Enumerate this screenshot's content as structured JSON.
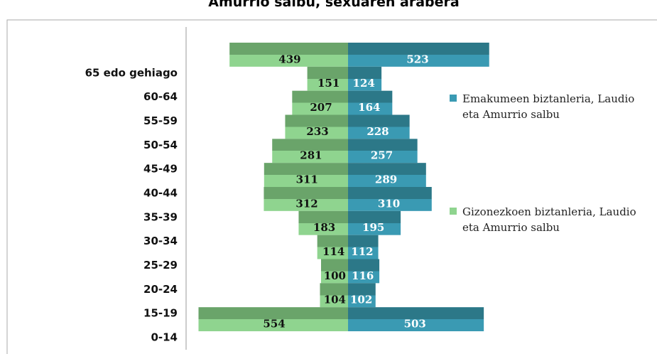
{
  "chart_data": {
    "type": "pyramid",
    "title": "Amurrio salbu, sexuaren arabera",
    "categories": [
      "65 edo gehiago",
      "60-64",
      "55-59",
      "50-54",
      "45-49",
      "40-44",
      "35-39",
      "30-34",
      "25-29",
      "20-24",
      "15-19",
      "0-14"
    ],
    "series": [
      {
        "name": "Emakumeen biztanleria, Laudio eta Amurrio salbu",
        "color": "#3a9ab3",
        "values": [
          523,
          124,
          164,
          228,
          257,
          289,
          310,
          195,
          112,
          116,
          102,
          503
        ]
      },
      {
        "name": "Gizonezkoen biztanleria, Laudio eta Amurrio salbu",
        "color": "#8fd48f",
        "values": [
          439,
          151,
          207,
          233,
          281,
          311,
          312,
          183,
          114,
          100,
          104,
          554
        ]
      }
    ]
  }
}
